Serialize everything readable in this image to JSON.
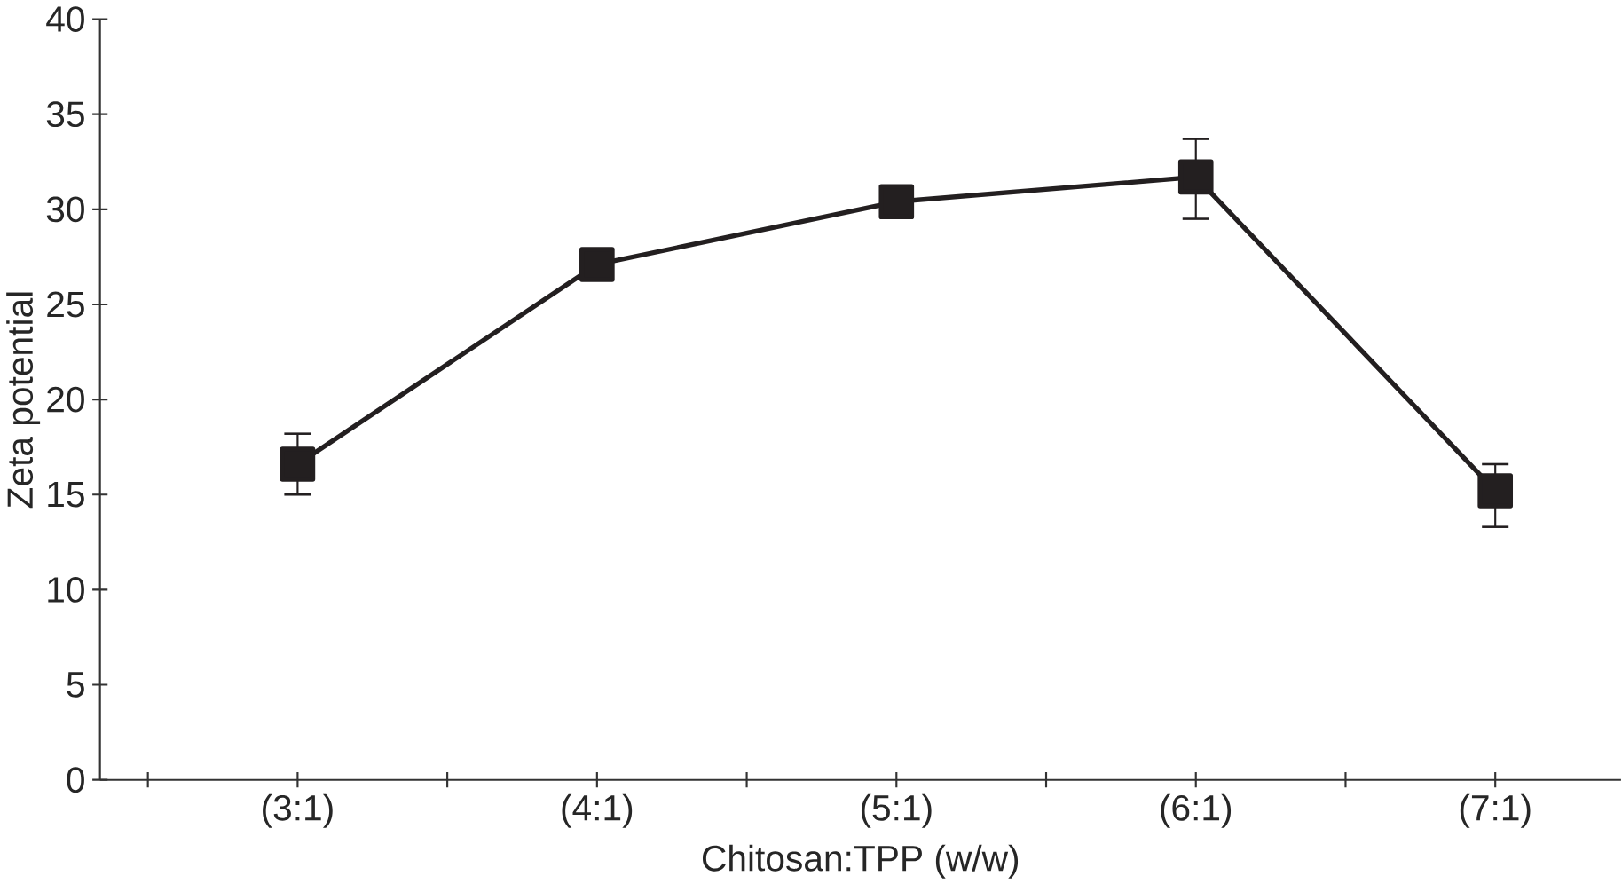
{
  "chart_data": {
    "type": "line",
    "xlabel": "Chitosan:TPP (w/w)",
    "ylabel": "Zeta potential",
    "categories": [
      "(3:1)",
      "(4:1)",
      "(5:1)",
      "(6:1)",
      "(7:1)"
    ],
    "series": [
      {
        "color": "#231f20",
        "values": [
          16.6,
          27.1,
          30.4,
          31.7,
          15.2
        ],
        "errors": [
          [
            15.0,
            18.2
          ],
          null,
          null,
          [
            29.5,
            33.7
          ],
          [
            13.3,
            16.6
          ]
        ]
      }
    ],
    "ylim": [
      0,
      40
    ],
    "yticks": [
      0,
      5,
      10,
      15,
      20,
      25,
      30,
      35,
      40
    ],
    "marker": "square",
    "line_style": "solid",
    "grid": false
  }
}
